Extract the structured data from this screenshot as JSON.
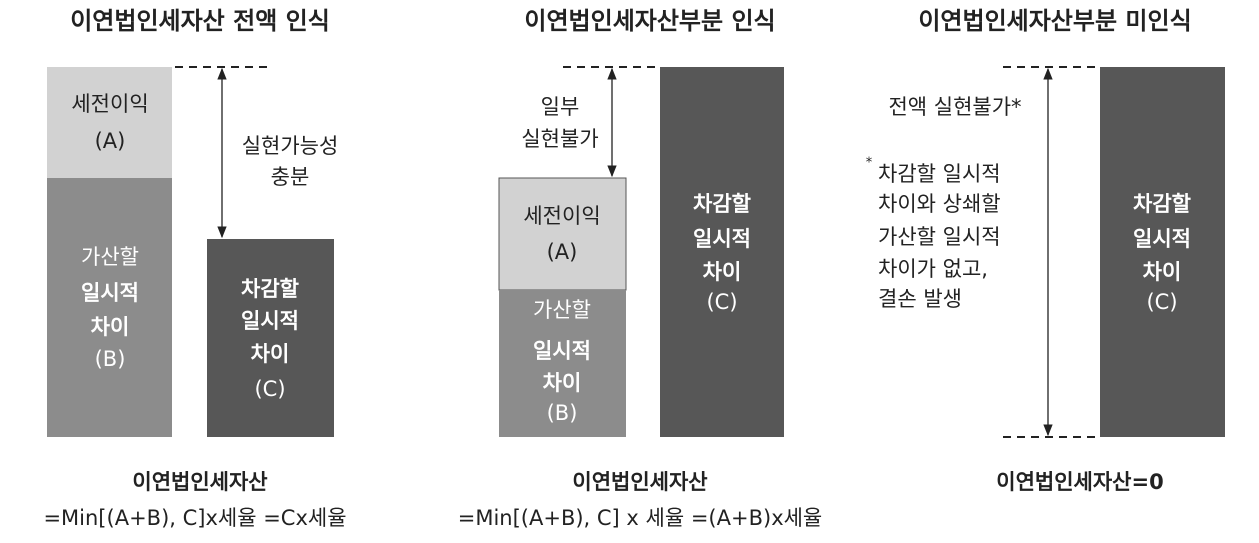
{
  "panels": [
    {
      "title": "이연법인세자산 전액 인식",
      "boxes": [
        {
          "lines": [
            "세전이익",
            "(A)"
          ]
        },
        {
          "lines": [
            "가산할",
            "일시적",
            "차이",
            "(B)"
          ]
        },
        {
          "lines": [
            "차감할",
            "일시적",
            "차이",
            "(C)"
          ]
        }
      ],
      "arrow_label": [
        "실현가능성",
        "충분"
      ],
      "formula": [
        "이연법인세자산",
        "=Min[(A+B), C]x세율 =Cx세율"
      ]
    },
    {
      "title": "이연법인세자산부분 인식",
      "boxes": [
        {
          "lines": [
            "세전이익",
            "(A)"
          ]
        },
        {
          "lines": [
            "가산할",
            "일시적",
            "차이",
            "(B)"
          ]
        },
        {
          "lines": [
            "차감할",
            "일시적",
            "차이",
            "(C)"
          ]
        }
      ],
      "arrow_label": [
        "일부",
        "실현불가"
      ],
      "formula": [
        "이연법인세자산",
        "=Min[(A+B), C] x 세율 =(A+B)x세율"
      ]
    },
    {
      "title": "이연법인세자산부분 미인식",
      "boxes": [
        {
          "lines": [
            "차감할",
            "일시적",
            "차이",
            "(C)"
          ]
        }
      ],
      "arrow_label": [
        "전액 실현불가*"
      ],
      "note_marker": "*",
      "note": [
        "차감할 일시적",
        "차이와 상쇄할",
        "가산할 일시적",
        "차이가 없고,",
        "결손 발생"
      ],
      "formula": [
        "이연법인세자산=0"
      ]
    }
  ]
}
